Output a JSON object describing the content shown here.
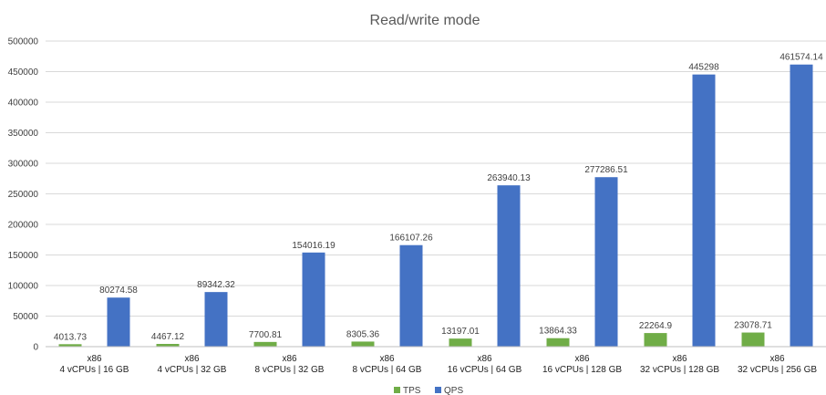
{
  "chart_data": {
    "type": "bar",
    "title": "Read/write mode",
    "xlabel": "",
    "ylabel": "",
    "ylim": [
      0,
      500000
    ],
    "yticks": [
      0,
      50000,
      100000,
      150000,
      200000,
      250000,
      300000,
      350000,
      400000,
      450000,
      500000
    ],
    "grid": true,
    "legend_position": "bottom",
    "categories": [
      [
        "x86",
        "4 vCPUs | 16 GB"
      ],
      [
        "x86",
        "4 vCPUs | 32 GB"
      ],
      [
        "x86",
        "8 vCPUs | 32 GB"
      ],
      [
        "x86",
        "8 vCPUs | 64 GB"
      ],
      [
        "x86",
        "16 vCPUs | 64 GB"
      ],
      [
        "x86",
        "16 vCPUs | 128 GB"
      ],
      [
        "x86",
        "32 vCPUs | 128 GB"
      ],
      [
        "x86",
        "32 vCPUs | 256 GB"
      ]
    ],
    "series": [
      {
        "name": "TPS",
        "color": "#70ad47",
        "values": [
          4013.73,
          4467.12,
          7700.81,
          8305.36,
          13197.01,
          13864.33,
          22264.9,
          23078.71
        ],
        "labels": [
          "4013.73",
          "4467.12",
          "7700.81",
          "8305.36",
          "13197.01",
          "13864.33",
          "22264.9",
          "23078.71"
        ]
      },
      {
        "name": "QPS",
        "color": "#4472c4",
        "values": [
          80274.58,
          89342.32,
          154016.19,
          166107.26,
          263940.13,
          277286.51,
          445298,
          461574.14
        ],
        "labels": [
          "80274.58",
          "89342.32",
          "154016.19",
          "166107.26",
          "263940.13",
          "277286.51",
          "445298",
          "461574.14"
        ]
      }
    ]
  }
}
